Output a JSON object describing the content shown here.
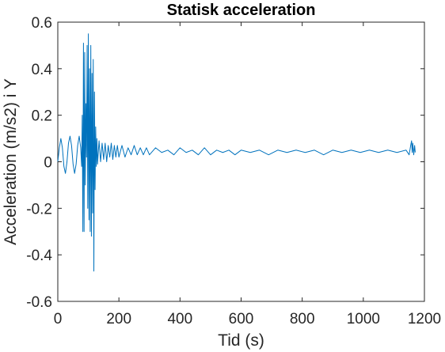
{
  "chart_data": {
    "type": "line",
    "title": "Statisk acceleration",
    "xlabel": "Tid (s)",
    "ylabel": "Acceleration (m/s2) i Y",
    "xlim": [
      0,
      1200
    ],
    "ylim": [
      -0.6,
      0.6
    ],
    "xticks": [
      0,
      200,
      400,
      600,
      800,
      1000,
      1200
    ],
    "yticks": [
      -0.6,
      -0.4,
      -0.2,
      0,
      0.2,
      0.4,
      0.6
    ],
    "xtick_labels": [
      "0",
      "200",
      "400",
      "600",
      "800",
      "1000",
      "1200"
    ],
    "ytick_labels": [
      "-0.6",
      "-0.4",
      "-0.2",
      "0",
      "0.2",
      "0.4",
      "0.6"
    ],
    "grid": false,
    "series": [
      {
        "color": "#0072bd",
        "x": [
          0,
          5,
          10,
          15,
          20,
          25,
          30,
          35,
          40,
          45,
          50,
          55,
          60,
          65,
          70,
          75,
          78,
          80,
          82,
          84,
          86,
          88,
          90,
          92,
          94,
          96,
          98,
          100,
          102,
          104,
          106,
          108,
          110,
          112,
          114,
          116,
          118,
          120,
          122,
          124,
          126,
          128,
          130,
          135,
          140,
          145,
          150,
          155,
          160,
          165,
          170,
          175,
          180,
          185,
          190,
          195,
          200,
          210,
          220,
          230,
          240,
          250,
          260,
          270,
          280,
          290,
          300,
          320,
          340,
          360,
          380,
          400,
          420,
          440,
          460,
          480,
          500,
          520,
          540,
          560,
          580,
          600,
          630,
          660,
          690,
          720,
          750,
          780,
          810,
          840,
          870,
          900,
          930,
          960,
          990,
          1020,
          1050,
          1080,
          1110,
          1140,
          1150,
          1155,
          1158,
          1160,
          1162,
          1165,
          1168,
          1170
        ],
        "y": [
          0.0,
          0.06,
          0.1,
          0.06,
          -0.02,
          -0.05,
          0.0,
          0.08,
          0.11,
          0.07,
          -0.01,
          -0.05,
          -0.01,
          0.07,
          0.11,
          0.06,
          -0.02,
          0.2,
          -0.3,
          0.51,
          -0.3,
          0.47,
          -0.1,
          0.25,
          0.02,
          0.5,
          -0.2,
          0.55,
          -0.25,
          0.4,
          -0.3,
          0.5,
          -0.32,
          0.38,
          -0.22,
          0.44,
          -0.47,
          0.3,
          -0.12,
          0.15,
          -0.02,
          0.1,
          -0.01,
          0.09,
          0.0,
          0.08,
          0.01,
          0.08,
          0.0,
          0.07,
          0.02,
          0.08,
          0.01,
          0.07,
          0.02,
          0.07,
          0.02,
          0.07,
          0.02,
          0.06,
          0.03,
          0.07,
          0.03,
          0.06,
          0.03,
          0.06,
          0.03,
          0.06,
          0.04,
          0.05,
          0.03,
          0.06,
          0.04,
          0.05,
          0.03,
          0.06,
          0.03,
          0.05,
          0.04,
          0.05,
          0.03,
          0.05,
          0.04,
          0.05,
          0.03,
          0.05,
          0.04,
          0.05,
          0.04,
          0.05,
          0.03,
          0.05,
          0.04,
          0.05,
          0.04,
          0.05,
          0.04,
          0.05,
          0.04,
          0.05,
          0.03,
          0.07,
          0.09,
          0.04,
          0.08,
          0.03,
          0.07,
          0.04
        ]
      }
    ]
  }
}
